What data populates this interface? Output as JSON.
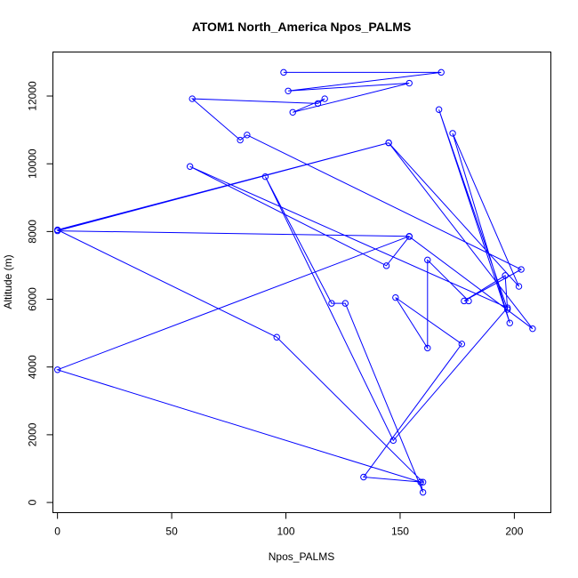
{
  "chart_data": {
    "type": "line",
    "title": "ATOM1 North_America Npos_PALMS",
    "xlabel": "Npos_PALMS",
    "ylabel": "Altitude (m)",
    "xlim": [
      -2,
      216
    ],
    "ylim": [
      -300,
      13300
    ],
    "xticks": [
      0,
      50,
      100,
      150,
      200
    ],
    "yticks": [
      0,
      2000,
      4000,
      6000,
      8000,
      10000,
      12000
    ],
    "grid": false,
    "color": "#0000ff",
    "series": [
      {
        "points": [
          [
            99,
            12700
          ],
          [
            168,
            12700
          ],
          [
            101,
            12150
          ],
          [
            154,
            12380
          ],
          [
            103,
            11520
          ],
          [
            117,
            11920
          ],
          [
            114,
            11780
          ],
          [
            59,
            11920
          ],
          [
            80,
            10700
          ],
          [
            83,
            10850
          ],
          [
            203,
            6880
          ],
          [
            178,
            5950
          ],
          [
            196,
            6700
          ],
          [
            197,
            5700
          ],
          [
            167,
            11600
          ],
          [
            198,
            5300
          ],
          [
            173,
            10900
          ],
          [
            202,
            6380
          ],
          [
            145,
            10620
          ],
          [
            208,
            5130
          ],
          [
            154,
            7850
          ],
          [
            144,
            6990
          ],
          [
            58,
            9920
          ],
          [
            197,
            5750
          ],
          [
            147,
            1830
          ],
          [
            91,
            9620
          ],
          [
            120,
            5880
          ],
          [
            126,
            5880
          ],
          [
            160,
            300
          ],
          [
            159,
            600
          ],
          [
            0,
            3920
          ],
          [
            154,
            7860
          ],
          [
            0,
            8020
          ],
          [
            145,
            10620
          ],
          [
            0,
            8050
          ],
          [
            96,
            4880
          ],
          [
            160,
            600
          ],
          [
            134,
            750
          ],
          [
            177,
            4680
          ],
          [
            148,
            6050
          ],
          [
            162,
            4560
          ],
          [
            162,
            7160
          ],
          [
            180,
            5950
          ]
        ]
      }
    ]
  }
}
